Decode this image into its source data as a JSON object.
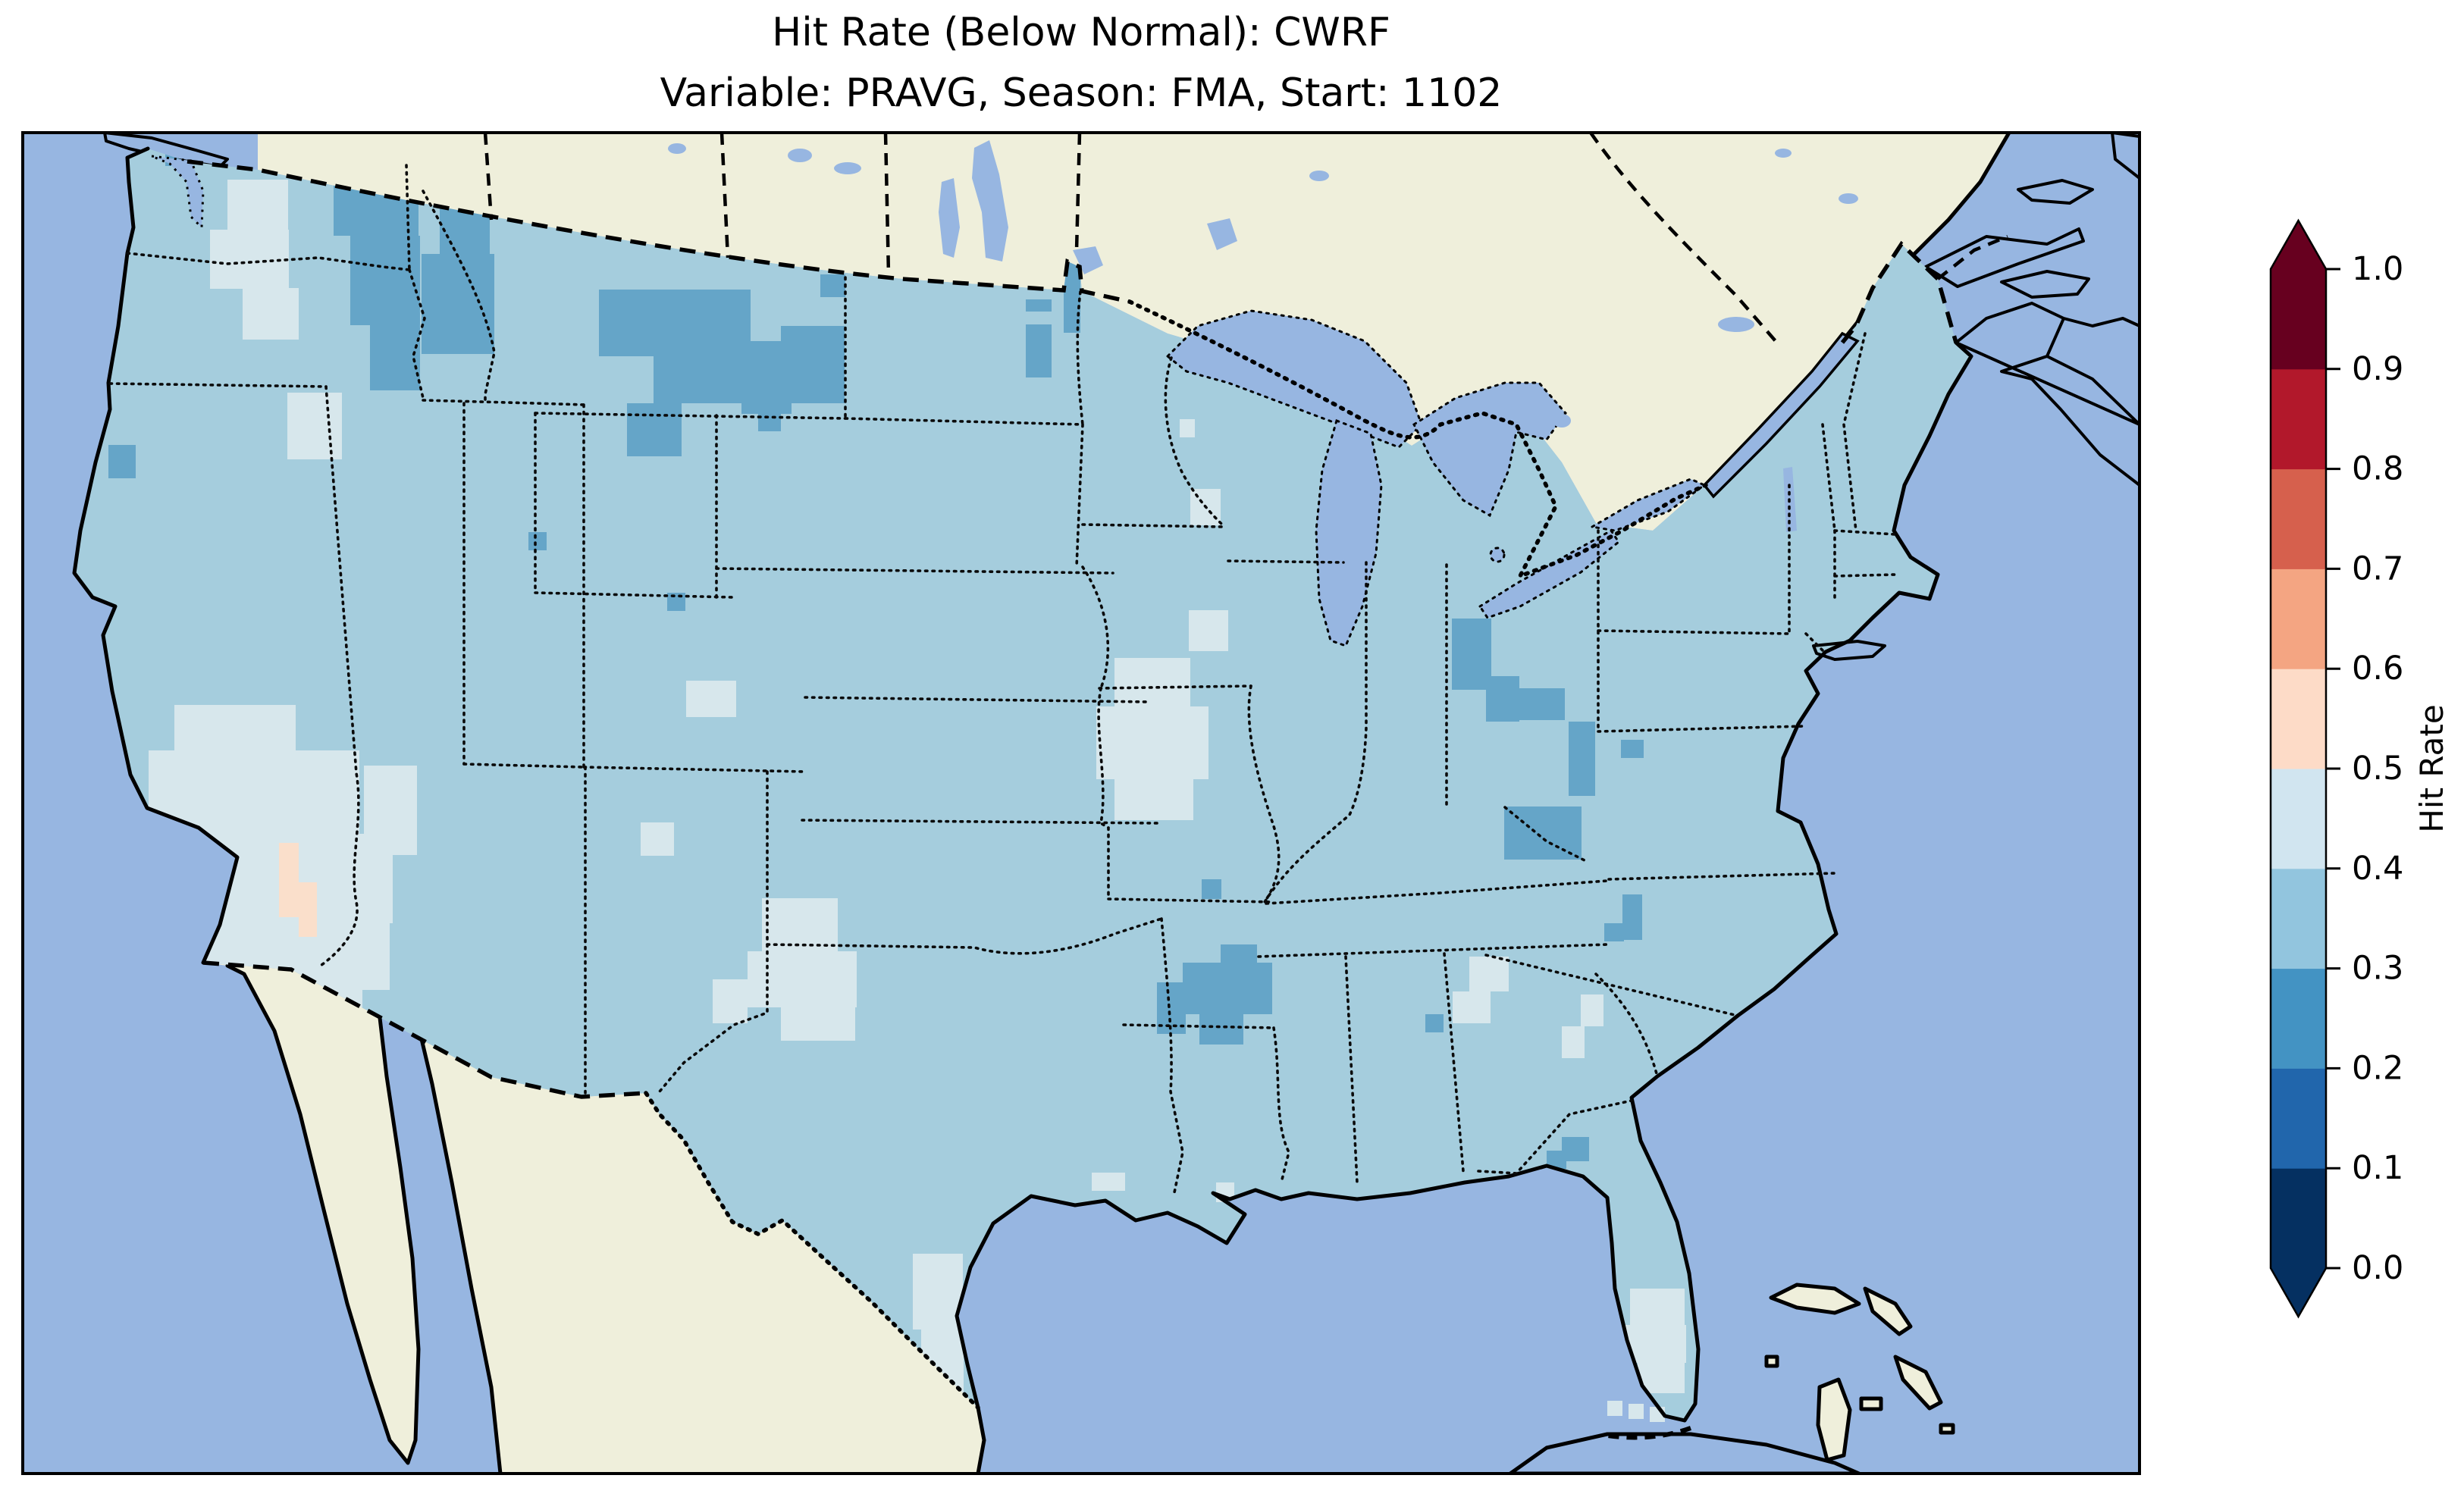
{
  "figure": {
    "title": "Hit Rate (Below Normal): CWRF",
    "subtitle": "Variable: PRAVG, Season: FMA, Start: 1102"
  },
  "chart_data": {
    "type": "heatmap",
    "subtype": "geographic_choropleth_map",
    "region": "Contiguous United States on CWRF grid, with Canada, Mexico, Cuba and Bahamas shown as unshaded land",
    "title": "Hit Rate (Below Normal): CWRF",
    "subtitle": "Variable: PRAVG, Season: FMA, Start: 1102",
    "model": "CWRF",
    "metric": "Hit Rate (Below Normal)",
    "variable": "PRAVG",
    "season": "FMA",
    "start": "1102",
    "colorbar": {
      "label": "Hit Rate",
      "orientation": "vertical",
      "extend": "both",
      "range": [
        0.0,
        1.0
      ],
      "ticks": [
        "0.0",
        "0.1",
        "0.2",
        "0.3",
        "0.4",
        "0.5",
        "0.6",
        "0.7",
        "0.8",
        "0.9",
        "1.0"
      ],
      "bins": [
        {
          "range": [
            0.0,
            0.1
          ],
          "color": "#053061"
        },
        {
          "range": [
            0.1,
            0.2
          ],
          "color": "#2166ac"
        },
        {
          "range": [
            0.2,
            0.3
          ],
          "color": "#4393c3"
        },
        {
          "range": [
            0.3,
            0.4
          ],
          "color": "#92c5de"
        },
        {
          "range": [
            0.4,
            0.5
          ],
          "color": "#d1e5f0"
        },
        {
          "range": [
            0.5,
            0.6
          ],
          "color": "#fddbc7"
        },
        {
          "range": [
            0.6,
            0.7
          ],
          "color": "#f4a582"
        },
        {
          "range": [
            0.7,
            0.8
          ],
          "color": "#d6604d"
        },
        {
          "range": [
            0.8,
            0.9
          ],
          "color": "#b2182b"
        },
        {
          "range": [
            0.9,
            1.0
          ],
          "color": "#67001f"
        }
      ]
    },
    "map_colors": {
      "ocean_and_lakes": "#97b6e1",
      "non_us_land": "#efefdb",
      "coastline": "#000000",
      "cell_alpha_over_land": 0.8
    },
    "dominant_bin": {
      "range": [
        0.3,
        0.4
      ],
      "color": "#92c5de",
      "note": "Most of the contiguous US falls in the 0.3-0.4 hit-rate bin"
    },
    "summary": "Hit rate mostly 0.3-0.4 nationwide; 0.2-0.3 over the northern Rockies (Idaho panhandle, west/central Montana), eastern Montana/Dakotas spots, SE Montana-Wyoming, Ohio Valley/West Virginia, Arkansas-Mississippi, coastal Oregon, Virginia and Georgia spots, and the Florida Big Bend; 0.4-0.5 over interior Washington, central Oregon, the Great Basin/Southwest (Nevada-Utah-Arizona-SE California), north Colorado, New Mexico-Texas panhandle, Iowa-Missouri, Carolinas/Georgia spots, Maine spots, south Texas, and south Florida incl. Keys cells; one 0.5-0.6 (pink) patch near the lower Colorado River at the California-Arizona border.",
    "anomaly_patches": [
      {
        "bin": 2,
        "label": "hit rate 0.2-0.3",
        "rects": [
          [
            218,
            195,
            24,
            24
          ],
          [
            440,
            237,
            112,
            74
          ],
          [
            462,
            311,
            92,
            118
          ],
          [
            488,
            429,
            66,
            86
          ],
          [
            556,
            335,
            96,
            132
          ],
          [
            580,
            253,
            66,
            84
          ],
          [
            790,
            382,
            200,
            88
          ],
          [
            862,
            470,
            134,
            62
          ],
          [
            978,
            450,
            66,
            96
          ],
          [
            1030,
            430,
            84,
            102
          ],
          [
            1000,
            533,
            30,
            36
          ],
          [
            1082,
            362,
            33,
            30
          ],
          [
            1353,
            395,
            34,
            16
          ],
          [
            1353,
            428,
            34,
            70
          ],
          [
            1403,
            327,
            22,
            112
          ],
          [
            827,
            532,
            72,
            70
          ],
          [
            697,
            702,
            24,
            24
          ],
          [
            880,
            782,
            24,
            24
          ],
          [
            143,
            587,
            36,
            44
          ],
          [
            1915,
            816,
            52,
            94
          ],
          [
            1960,
            892,
            44,
            60
          ],
          [
            2002,
            908,
            62,
            42
          ],
          [
            2069,
            952,
            35,
            98
          ],
          [
            1984,
            1064,
            102,
            70
          ],
          [
            2138,
            976,
            30,
            24
          ],
          [
            2140,
            1180,
            26,
            60
          ],
          [
            2116,
            1218,
            26,
            24
          ],
          [
            1560,
            1270,
            118,
            68
          ],
          [
            1526,
            1296,
            38,
            68
          ],
          [
            1582,
            1338,
            58,
            40
          ],
          [
            1610,
            1246,
            48,
            26
          ],
          [
            1585,
            1160,
            26,
            26
          ],
          [
            1880,
            1338,
            24,
            24
          ],
          [
            2060,
            1500,
            36,
            32
          ],
          [
            2040,
            1518,
            26,
            24
          ]
        ]
      },
      {
        "bin": 4,
        "label": "hit rate 0.4-0.5",
        "rects": [
          [
            300,
            237,
            80,
            68
          ],
          [
            277,
            303,
            104,
            78
          ],
          [
            320,
            380,
            74,
            68
          ],
          [
            379,
            518,
            72,
            88
          ],
          [
            230,
            930,
            160,
            62
          ],
          [
            196,
            990,
            278,
            110
          ],
          [
            182,
            1100,
            336,
            118
          ],
          [
            216,
            1218,
            298,
            88
          ],
          [
            250,
            1306,
            228,
            40
          ],
          [
            480,
            1010,
            70,
            118
          ],
          [
            905,
            898,
            66,
            48
          ],
          [
            1005,
            1185,
            100,
            70
          ],
          [
            986,
            1255,
            144,
            74
          ],
          [
            1030,
            1329,
            98,
            44
          ],
          [
            940,
            1292,
            46,
            58
          ],
          [
            845,
            1085,
            44,
            44
          ],
          [
            1470,
            868,
            100,
            64
          ],
          [
            1446,
            932,
            148,
            96
          ],
          [
            1470,
            1028,
            104,
            54
          ],
          [
            1938,
            1262,
            52,
            46
          ],
          [
            1916,
            1308,
            50,
            42
          ],
          [
            2085,
            1312,
            30,
            42
          ],
          [
            2060,
            1354,
            30,
            42
          ],
          [
            2150,
            1700,
            72,
            48
          ],
          [
            2140,
            1748,
            84,
            50
          ],
          [
            2160,
            1798,
            62,
            40
          ],
          [
            1556,
            553,
            20,
            24
          ],
          [
            1570,
            645,
            40,
            48
          ],
          [
            1568,
            805,
            52,
            54
          ],
          [
            2380,
            383,
            16,
            20
          ],
          [
            2382,
            440,
            18,
            28
          ],
          [
            1204,
            1654,
            66,
            100
          ],
          [
            1215,
            1754,
            56,
            84
          ],
          [
            1440,
            1547,
            44,
            24
          ],
          [
            1604,
            1560,
            24,
            26
          ]
        ]
      },
      {
        "bin": 4,
        "label": "hit rate 0.4-0.5 (Florida Keys cells)",
        "unclipped": true,
        "rects": [
          [
            2120,
            1848,
            20,
            20
          ],
          [
            2148,
            1852,
            20,
            20
          ],
          [
            2176,
            1856,
            20,
            20
          ]
        ]
      },
      {
        "bin": 5,
        "label": "hit rate 0.5-0.6",
        "rects": [
          [
            368,
            1112,
            26,
            52
          ],
          [
            368,
            1164,
            50,
            46
          ],
          [
            394,
            1210,
            24,
            26
          ]
        ]
      }
    ]
  }
}
